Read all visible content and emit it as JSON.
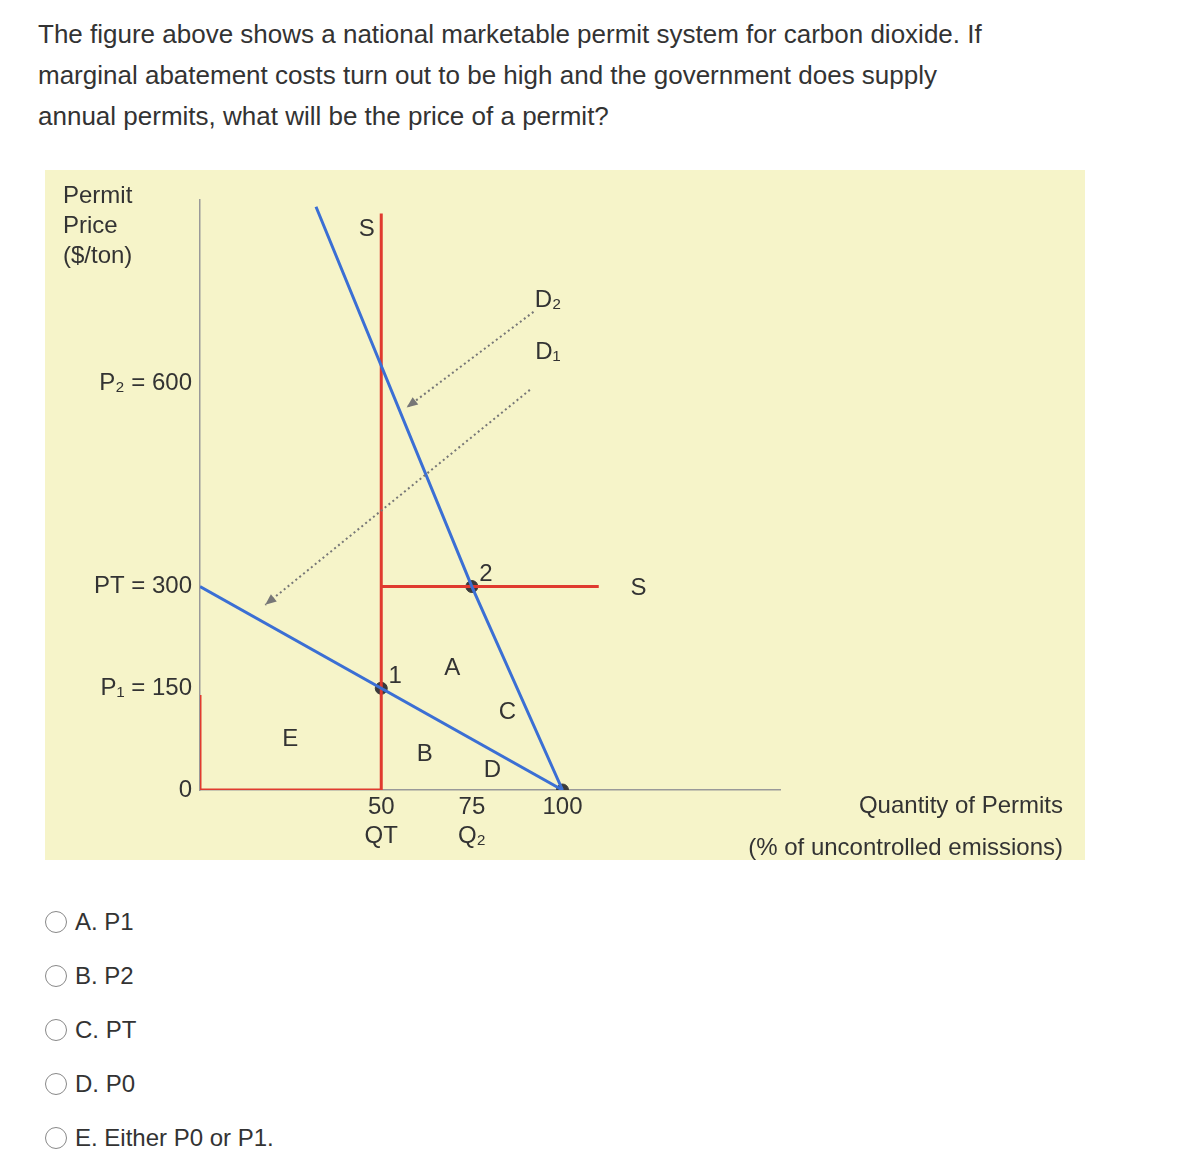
{
  "question": [
    "The figure above shows a national marketable permit system for carbon dioxide. If",
    "marginal abatement costs turn out to be high and the government does supply",
    "annual permits, what will be the price of a permit?"
  ],
  "chart_data": {
    "type": "line",
    "y_label": "Permit\nPrice\n($/ton)",
    "x_label": "Quantity of Permits\n(% of uncontrolled emissions)",
    "xlim": [
      0,
      160
    ],
    "ylim": [
      0,
      870
    ],
    "xticks": [
      {
        "value": 50,
        "label": "50\nQT"
      },
      {
        "value": 75,
        "label": "75\nQ₂"
      },
      100
    ],
    "yticks": [
      0,
      {
        "value": 150,
        "label": "P₁ = 150"
      },
      {
        "value": 300,
        "label": "PT = 300"
      },
      {
        "value": 600,
        "label": "P₂ = 600"
      }
    ],
    "grid": false,
    "series": [
      {
        "name": "D₁",
        "color": "#3b6fd4",
        "line_style": "solid",
        "x": [
          0,
          100
        ],
        "y": [
          300,
          0
        ],
        "labels": [
          {
            "x": 96,
            "y": 646,
            "arrow_from": [
              91,
              590
            ],
            "arrow_to": [
              18,
              273
            ]
          }
        ]
      },
      {
        "name": "D₂",
        "color": "#3b6fd4",
        "line_style": "solid",
        "x": [
          32,
          75,
          100
        ],
        "y": [
          860,
          300,
          0
        ],
        "labels": [
          {
            "x": 96,
            "y": 722,
            "arrow_from": [
              92,
              705
            ],
            "arrow_to": [
              57,
              564
            ]
          }
        ]
      },
      {
        "name": "S",
        "color": "#e03a2f",
        "line_style": "solid",
        "x": [
          0,
          0,
          50,
          50,
          null,
          50,
          110
        ],
        "y": [
          140,
          0,
          0,
          850,
          null,
          300,
          300
        ],
        "labels": [
          {
            "x": 46,
            "y": 826
          },
          {
            "x": 121,
            "y": 298
          }
        ]
      }
    ],
    "points": [
      {
        "label": "1",
        "x": 50,
        "y": 150
      },
      {
        "label": "2",
        "x": 75,
        "y": 300
      },
      {
        "x": 100,
        "y": 0
      }
    ],
    "annotations": [
      {
        "text": "A",
        "x": 69.6,
        "y": 180
      },
      {
        "text": "B",
        "x": 62,
        "y": 52
      },
      {
        "text": "C",
        "x": 84.8,
        "y": 115
      },
      {
        "text": "D",
        "x": 80.7,
        "y": 29.5
      },
      {
        "text": "E",
        "x": 24.9,
        "y": 74
      }
    ]
  },
  "options": [
    "A. P1",
    "B. P2",
    "C. PT",
    "D. P0",
    "E. Either P0 or P1."
  ]
}
